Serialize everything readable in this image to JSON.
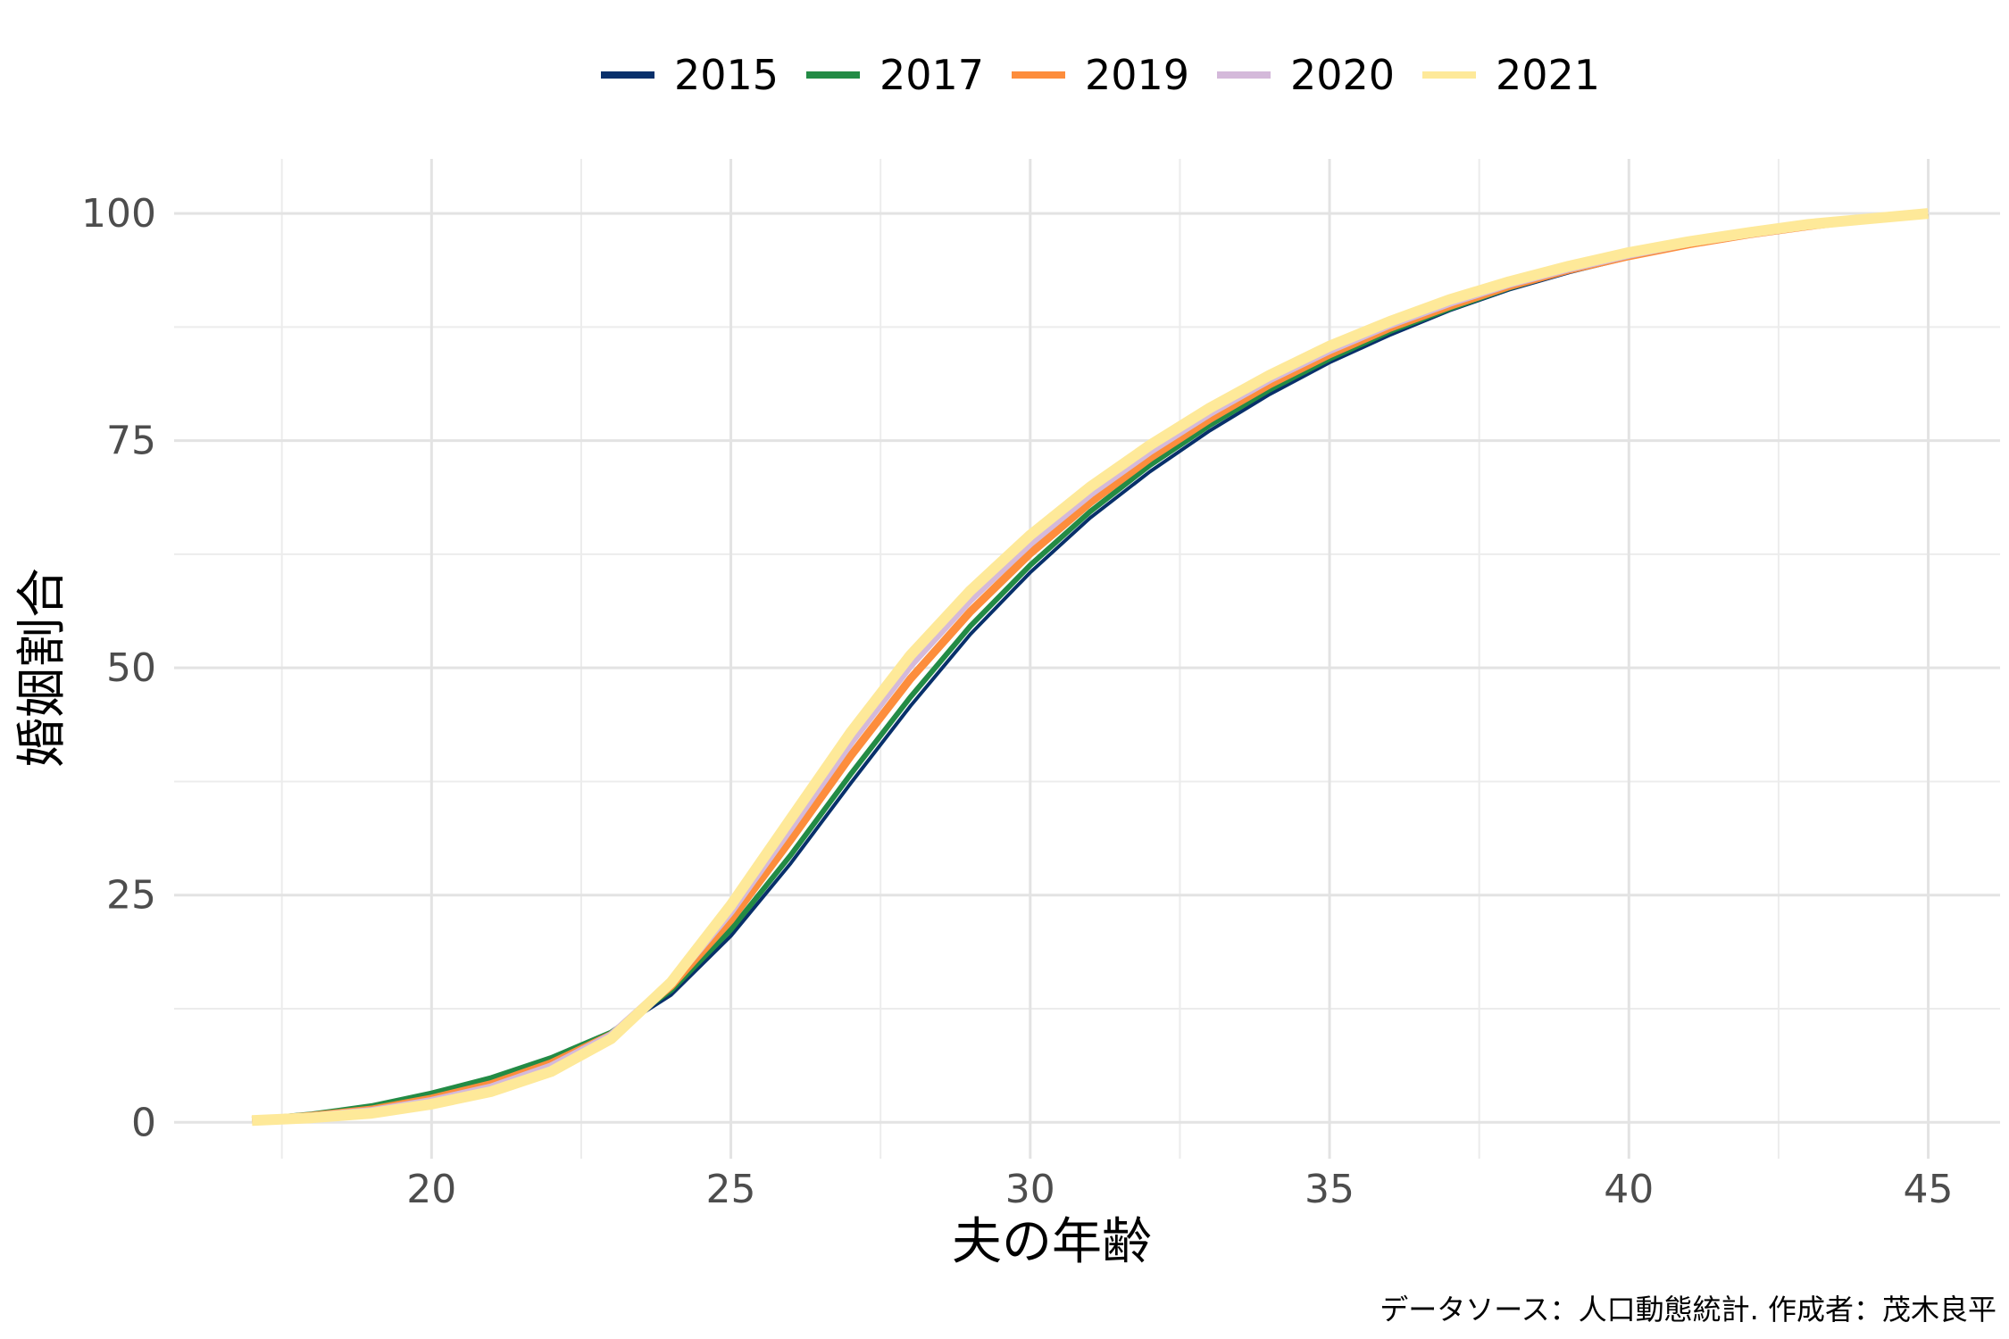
{
  "chart_data": {
    "type": "line",
    "xlabel": "夫の年齢",
    "ylabel": "婚姻割合",
    "caption": "データソース：人口動態統計. 作成者：茂木良平",
    "xlim": [
      15.7,
      46.2
    ],
    "ylim": [
      -4,
      106
    ],
    "x_ticks": [
      20,
      25,
      30,
      35,
      40,
      45
    ],
    "y_ticks": [
      0,
      25,
      50,
      75,
      100
    ],
    "x_tick_labels": [
      "20",
      "25",
      "30",
      "35",
      "40",
      "45"
    ],
    "y_tick_labels": [
      "0",
      "25",
      "50",
      "75",
      "100"
    ],
    "grid": true,
    "legend_position": "top",
    "x": [
      17,
      18,
      19,
      20,
      21,
      22,
      23,
      24,
      25,
      26,
      27,
      28,
      29,
      30,
      31,
      32,
      33,
      34,
      35,
      36,
      37,
      38,
      39,
      40,
      41,
      42,
      43,
      44,
      45
    ],
    "series": [
      {
        "name": "2015",
        "color": "#08306b",
        "values": [
          0.3,
          0.9,
          1.8,
          3.2,
          4.9,
          7.0,
          9.8,
          14.0,
          20.5,
          28.5,
          37.3,
          45.8,
          53.7,
          60.5,
          66.5,
          71.6,
          76.1,
          80.1,
          83.6,
          86.6,
          89.3,
          91.6,
          93.5,
          95.1,
          96.5,
          97.6,
          98.6,
          99.4,
          100
        ]
      },
      {
        "name": "2017",
        "color": "#238b45",
        "values": [
          0.3,
          0.9,
          1.8,
          3.2,
          4.9,
          7.1,
          9.9,
          14.5,
          21.2,
          29.4,
          38.3,
          46.8,
          54.6,
          61.3,
          67.2,
          72.3,
          76.7,
          80.6,
          84.0,
          87.0,
          89.5,
          91.8,
          93.7,
          95.2,
          96.6,
          97.7,
          98.7,
          99.4,
          100
        ]
      },
      {
        "name": "2019",
        "color": "#fd8d3c",
        "values": [
          0.2,
          0.7,
          1.4,
          2.6,
          4.2,
          6.5,
          9.6,
          15.0,
          22.3,
          31.1,
          40.3,
          48.8,
          56.2,
          62.6,
          68.2,
          73.1,
          77.4,
          81.2,
          84.5,
          87.4,
          89.8,
          92.0,
          93.8,
          95.3,
          96.6,
          97.7,
          98.6,
          99.4,
          100
        ]
      },
      {
        "name": "2020",
        "color": "#d4b9da",
        "values": [
          0.2,
          0.6,
          1.2,
          2.3,
          3.8,
          6.1,
          9.5,
          15.4,
          23.3,
          32.5,
          41.9,
          50.4,
          57.6,
          63.8,
          69.2,
          73.9,
          78.1,
          81.8,
          85.0,
          87.8,
          90.2,
          92.3,
          94.0,
          95.5,
          96.8,
          97.8,
          98.7,
          99.4,
          100
        ]
      },
      {
        "name": "2021",
        "color": "#fee999",
        "values": [
          0.2,
          0.5,
          1.0,
          2.0,
          3.4,
          5.6,
          9.2,
          15.4,
          23.9,
          33.4,
          42.9,
          51.4,
          58.5,
          64.6,
          69.9,
          74.5,
          78.6,
          82.2,
          85.4,
          88.1,
          90.5,
          92.5,
          94.2,
          95.7,
          96.9,
          97.9,
          98.8,
          99.4,
          100
        ]
      }
    ]
  }
}
